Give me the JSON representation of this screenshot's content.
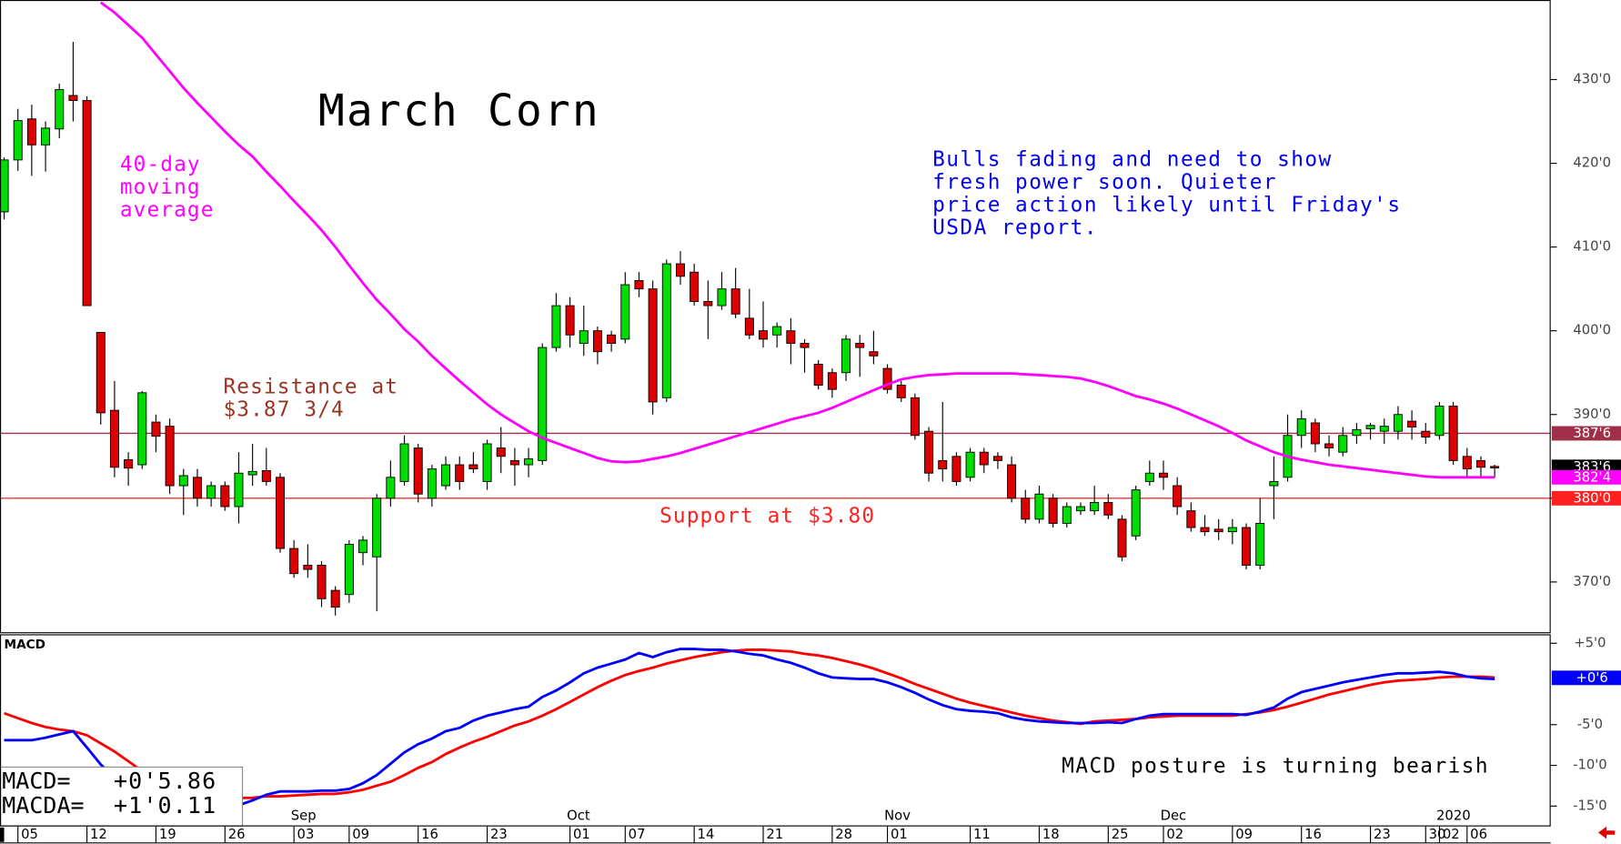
{
  "chart_data": {
    "type": "candlestick",
    "title": "March Corn",
    "categories": [
      null,
      "05",
      null,
      null,
      null,
      null,
      "12",
      null,
      null,
      null,
      null,
      "19",
      null,
      null,
      null,
      null,
      "26",
      null,
      null,
      null,
      null,
      "03",
      null,
      null,
      null,
      "09",
      null,
      null,
      null,
      null,
      "16",
      null,
      null,
      null,
      null,
      "23",
      null,
      null,
      null,
      null,
      null,
      "01",
      null,
      null,
      null,
      "07",
      null,
      null,
      null,
      null,
      "14",
      null,
      null,
      null,
      null,
      "21",
      null,
      null,
      null,
      null,
      "28",
      null,
      null,
      null,
      "01",
      null,
      null,
      null,
      null,
      null,
      "11",
      null,
      null,
      null,
      null,
      "18",
      null,
      null,
      null,
      null,
      "25",
      null,
      null,
      null,
      "02",
      null,
      null,
      null,
      null,
      "09",
      null,
      null,
      null,
      null,
      "16",
      null,
      null,
      null,
      null,
      "23",
      null,
      null,
      null,
      "30",
      "02",
      null,
      "06",
      null,
      null
    ],
    "months": [
      null,
      null,
      null,
      null,
      null,
      null,
      null,
      null,
      null,
      null,
      null,
      null,
      null,
      null,
      null,
      null,
      null,
      null,
      null,
      null,
      null,
      "Sep",
      null,
      null,
      null,
      null,
      null,
      null,
      null,
      null,
      null,
      null,
      null,
      null,
      null,
      null,
      null,
      null,
      null,
      null,
      null,
      "Oct",
      null,
      null,
      null,
      null,
      null,
      null,
      null,
      null,
      null,
      null,
      null,
      null,
      null,
      null,
      null,
      null,
      null,
      null,
      null,
      null,
      null,
      null,
      "Nov",
      null,
      null,
      null,
      null,
      null,
      null,
      null,
      null,
      null,
      null,
      null,
      null,
      null,
      null,
      null,
      null,
      null,
      null,
      null,
      "Dec",
      null,
      null,
      null,
      null,
      null,
      null,
      null,
      null,
      null,
      null,
      null,
      null,
      null,
      null,
      null,
      null,
      null,
      null,
      null,
      "2020",
      null,
      null,
      null,
      null
    ],
    "open": [
      414.2,
      420.4,
      425.3,
      422.2,
      424.1,
      428.1,
      427.5,
      399.8,
      390.5,
      384.6,
      384,
      389.1,
      388.6,
      381.5,
      382.5,
      380,
      381.5,
      379,
      382.8,
      383.3,
      382.5,
      374,
      372,
      372,
      369,
      368.5,
      373.5,
      373,
      380,
      382,
      386,
      380,
      381.5,
      384,
      384,
      382,
      386,
      384.5,
      384,
      384.5,
      398,
      403,
      398.5,
      400,
      399.5,
      399,
      406,
      405,
      392,
      408,
      407,
      403.5,
      403,
      405,
      401.5,
      400,
      399.5,
      400,
      398.5,
      396,
      395,
      395,
      398.5,
      397.5,
      395.5,
      393.5,
      392,
      388,
      384.5,
      385,
      382.5,
      385.5,
      385,
      384,
      380,
      377.5,
      380,
      377,
      378.5,
      378.5,
      379.5,
      377.5,
      375.5,
      382,
      383,
      381.5,
      378.5,
      376.5,
      376.3,
      376,
      376.5,
      372,
      381.5,
      382.5,
      387.5,
      389,
      386.5,
      385.5,
      387.5,
      388.3,
      388,
      388,
      389.2,
      388,
      387.5,
      391,
      385,
      384.5,
      383.8
    ],
    "high": [
      420.7,
      426.5,
      427,
      425,
      429.5,
      434.5,
      428,
      399.8,
      394,
      385.5,
      392.8,
      390,
      389.5,
      383.5,
      383.5,
      382,
      382,
      385.5,
      386.5,
      386,
      383,
      375,
      374.5,
      372.5,
      369.5,
      375,
      375.5,
      380.5,
      384.5,
      387.5,
      386.5,
      384,
      385,
      385,
      385.5,
      387,
      388.5,
      386,
      386,
      398.5,
      404.5,
      404,
      403,
      400.5,
      400,
      407,
      407,
      406,
      408.5,
      409.5,
      408,
      406,
      407,
      407.5,
      405,
      403.5,
      401,
      401.5,
      399,
      396.5,
      395.5,
      399.5,
      399.5,
      400,
      396,
      394,
      392.5,
      388.5,
      391.5,
      385.5,
      386,
      386,
      385.5,
      385,
      381,
      381.5,
      380.5,
      379.5,
      379.5,
      381.5,
      380.5,
      378,
      381.5,
      384.5,
      384.5,
      382.5,
      379.5,
      378,
      377.5,
      377.5,
      377,
      380,
      385,
      390,
      390.5,
      389.5,
      387.5,
      388.5,
      389,
      389,
      389.5,
      391,
      390.5,
      389,
      391.5,
      391.5,
      386,
      385,
      384
    ],
    "low": [
      413.3,
      419.1,
      418.5,
      419,
      423,
      425,
      403,
      388.8,
      382.5,
      381.5,
      383.5,
      385.5,
      380.5,
      378,
      379,
      379,
      378.5,
      377,
      381.5,
      381.5,
      373.5,
      370.5,
      370.5,
      367,
      366,
      367.5,
      372,
      366.5,
      379,
      381.5,
      379.5,
      379,
      381,
      381,
      383,
      381,
      383,
      381.5,
      382.5,
      384,
      397.5,
      398,
      397,
      396,
      397.5,
      398.5,
      404,
      390,
      391.5,
      405.5,
      403,
      399,
      402.5,
      401.5,
      399,
      398,
      398,
      396,
      395,
      393,
      392,
      394,
      394.5,
      396,
      392.5,
      391.5,
      387,
      382,
      382,
      381.5,
      382,
      383,
      383.5,
      379.5,
      377,
      377,
      376.5,
      376.5,
      378,
      378,
      377.5,
      372.5,
      375,
      381.5,
      381,
      378,
      376,
      375.5,
      375,
      374.5,
      371.5,
      371.5,
      377.5,
      382,
      386,
      385.5,
      385,
      385,
      386.5,
      387,
      386.5,
      387,
      387,
      386.5,
      387,
      384,
      382.5,
      382.5,
      382.5
    ],
    "close": [
      420.4,
      425.1,
      422.2,
      424.2,
      428.8,
      427.5,
      403,
      390.2,
      383.7,
      383.6,
      392.6,
      387.4,
      381.5,
      382.7,
      380,
      381.5,
      379,
      383,
      383.2,
      382,
      374,
      371,
      371.5,
      368,
      367,
      374.5,
      375,
      380,
      382.5,
      386.5,
      380.5,
      383.5,
      384,
      382,
      383.5,
      386.5,
      385,
      384,
      384.7,
      398,
      403,
      399.5,
      400,
      397.5,
      398.5,
      405.5,
      405,
      391.5,
      408,
      406.5,
      403.5,
      403,
      405,
      402,
      399.5,
      399,
      400.5,
      398.5,
      398,
      393.5,
      393,
      399,
      398,
      397,
      393,
      392,
      387.5,
      383,
      383.5,
      382,
      385.5,
      384,
      384.5,
      380,
      377.5,
      380.5,
      377,
      379,
      379,
      379.5,
      378,
      373,
      381,
      383,
      382.5,
      379,
      376.5,
      376,
      376,
      376.5,
      372,
      377,
      382,
      387.5,
      389.5,
      386.5,
      386,
      387.5,
      388.2,
      388.7,
      388.6,
      390,
      388.5,
      387.3,
      391,
      384.5,
      383.5,
      383.7,
      383.75
    ],
    "up_color": "#00dd00",
    "down_color": "#dd0000",
    "ylim": [
      364,
      439.5
    ],
    "yticks": [
      {
        "value": 370,
        "label": "370'0"
      },
      {
        "value": 380,
        "label": "380'0"
      },
      {
        "value": 390,
        "label": "390'0"
      },
      {
        "value": 400,
        "label": "400'0"
      },
      {
        "value": 410,
        "label": "410'0"
      },
      {
        "value": 420,
        "label": "420'0"
      },
      {
        "value": 430,
        "label": "430'0"
      }
    ],
    "moving_average": {
      "label": [
        "40-day",
        "moving",
        "average"
      ],
      "color": "#ff00ff",
      "values": [
        null,
        null,
        null,
        null,
        null,
        null,
        null,
        439.2,
        438,
        436.5,
        435,
        433,
        431,
        429,
        427.2,
        425.5,
        423.8,
        422.2,
        420.8,
        419,
        417.3,
        415.5,
        413.8,
        412,
        410,
        407.8,
        405.7,
        403.7,
        402,
        400.2,
        398.7,
        397,
        395.5,
        394,
        392.6,
        391.2,
        390,
        389,
        388,
        387.2,
        386.6,
        386,
        385.4,
        384.8,
        384.4,
        384.3,
        384.4,
        384.7,
        385,
        385.4,
        385.9,
        386.4,
        386.9,
        387.4,
        387.9,
        388.4,
        388.9,
        389.4,
        389.8,
        390.2,
        390.8,
        391.5,
        392.2,
        392.9,
        393.6,
        394.2,
        394.5,
        394.7,
        394.8,
        394.9,
        394.9,
        394.9,
        394.9,
        394.9,
        394.8,
        394.7,
        394.6,
        394.5,
        394.3,
        393.9,
        393.4,
        392.8,
        392.2,
        391.8,
        391.3,
        390.7,
        390,
        389.3,
        388.6,
        387.8,
        386.9,
        386.2,
        385.5,
        385,
        384.6,
        384.3,
        384,
        383.8,
        383.6,
        383.4,
        383.2,
        383,
        382.8,
        382.6,
        382.5,
        382.5,
        382.5,
        382.5,
        382.5
      ]
    },
    "levels": [
      {
        "value": 387.75,
        "color": "#a0304a",
        "label": [
          "Resistance at",
          "$3.87 3/4"
        ],
        "label_color": "#993322"
      },
      {
        "value": 380,
        "color": "#ff3030",
        "label": [
          "Support at $3.80"
        ],
        "label_color": "#ff2020"
      }
    ],
    "price_tags": [
      {
        "value": 387.75,
        "label": "387'6",
        "color": "#a0304a"
      },
      {
        "value": 383.75,
        "label": "383'6",
        "color": "#000000"
      },
      {
        "value": 382.5,
        "label": "382'4",
        "color": "#ff00ff"
      },
      {
        "value": 380,
        "label": "380'0",
        "color": "#ff2020"
      }
    ],
    "annotation": {
      "lines": [
        "Bulls fading and need to show",
        "fresh power soon. Quieter",
        "price action likely until Friday's",
        "USDA report."
      ],
      "color": "#0000ee"
    },
    "macd": {
      "title": "MACD",
      "ylim": [
        -17.5,
        6.1
      ],
      "yticks": [
        {
          "value": 5,
          "label": "+5'0"
        },
        {
          "value": -5,
          "label": "-5'0"
        },
        {
          "value": -10,
          "label": "-10'0"
        },
        {
          "value": -15,
          "label": "-15'0"
        }
      ],
      "tag": {
        "value": 0.75,
        "label": "+0'6",
        "color": "#0000ff"
      },
      "annotation": "MACD posture is turning bearish",
      "series": [
        {
          "name": "MACDA=",
          "value_label": "+1'0.11",
          "color": "#ff0000",
          "values": [
            -3.6,
            -4.2,
            -4.8,
            -5.3,
            -5.6,
            -5.8,
            -6.3,
            -7.3,
            -8.3,
            -9.5,
            -10.7,
            -11.7,
            -12.3,
            -12.9,
            -13.3,
            -13.6,
            -13.7,
            -14,
            -14,
            -13.8,
            -13.8,
            -13.7,
            -13.6,
            -13.5,
            -13.5,
            -13.3,
            -13,
            -12.5,
            -12,
            -11.2,
            -10.3,
            -9.6,
            -8.6,
            -7.8,
            -7.1,
            -6.5,
            -5.8,
            -5.1,
            -4.6,
            -3.9,
            -3.1,
            -2.2,
            -1.3,
            -0.4,
            0.4,
            1.1,
            1.6,
            2,
            2.5,
            2.9,
            3.3,
            3.6,
            3.9,
            4.1,
            4.2,
            4.2,
            4.1,
            4,
            3.7,
            3.5,
            3.2,
            2.8,
            2.4,
            1.9,
            1.3,
            0.7,
            0,
            -0.6,
            -1.2,
            -1.8,
            -2.3,
            -2.7,
            -3.1,
            -3.5,
            -3.9,
            -4.2,
            -4.5,
            -4.7,
            -4.9,
            -4.6,
            -4.5,
            -4.4,
            -4.3,
            -4.1,
            -4,
            -3.9,
            -3.9,
            -3.9,
            -3.9,
            -3.9,
            -3.7,
            -3.5,
            -3.2,
            -2.8,
            -2.3,
            -1.8,
            -1.3,
            -0.9,
            -0.5,
            -0.1,
            0.2,
            0.4,
            0.5,
            0.6,
            0.8,
            0.9,
            0.9,
            0.9,
            0.8
          ]
        },
        {
          "name": "MACD=",
          "value_label": "+0'5.86",
          "color": "#0000ff",
          "values": [
            -6.9,
            -6.9,
            -6.9,
            -6.6,
            -6.2,
            -5.8,
            -7.8,
            -9.9,
            -11.5,
            -12.8,
            -14,
            -15,
            -15.8,
            -16.4,
            -16.8,
            -17,
            -16.8,
            -14.9,
            -14.3,
            -13.6,
            -13.2,
            -13.2,
            -13.2,
            -13.1,
            -13.1,
            -12.9,
            -12.2,
            -11.2,
            -9.8,
            -8.4,
            -7.4,
            -6.7,
            -5.8,
            -5.4,
            -4.5,
            -3.9,
            -3.5,
            -3.1,
            -2.8,
            -1.6,
            -0.8,
            0.2,
            1.3,
            2,
            2.5,
            3,
            3.8,
            3.3,
            3.9,
            4.3,
            4.3,
            4.2,
            4.2,
            4,
            3.7,
            3.5,
            3,
            2.6,
            2,
            1.3,
            0.8,
            0.7,
            0.6,
            0.6,
            0.2,
            -0.4,
            -1.1,
            -1.9,
            -2.6,
            -3.1,
            -3.3,
            -3.4,
            -3.6,
            -4.1,
            -4.4,
            -4.6,
            -4.7,
            -4.8,
            -4.8,
            -4.8,
            -4.7,
            -4.8,
            -4.3,
            -3.9,
            -3.7,
            -3.7,
            -3.7,
            -3.7,
            -3.7,
            -3.7,
            -3.8,
            -3.4,
            -2.9,
            -1.8,
            -1,
            -0.6,
            -0.2,
            0.2,
            0.5,
            0.8,
            1.1,
            1.3,
            1.3,
            1.4,
            1.5,
            1.3,
            0.9,
            0.7,
            0.6
          ]
        }
      ]
    }
  }
}
